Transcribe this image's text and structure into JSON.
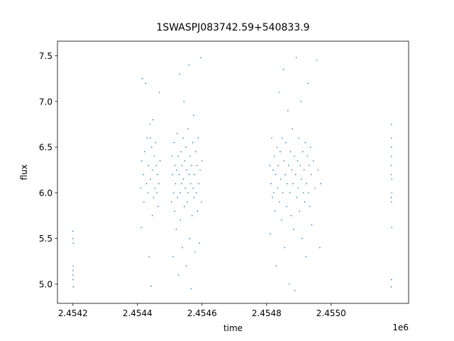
{
  "chart_data": {
    "type": "scatter",
    "title": "1SWASPJ083742.59+540833.9",
    "x_label": "time",
    "y_label": "flux",
    "x_offset_text": "1e6",
    "color": "#1f77b4",
    "xlim": [
      2454152,
      2455240
    ],
    "ylim": [
      4.79,
      7.66
    ],
    "xticks": [
      {
        "value": 2454200,
        "label": "2.4542"
      },
      {
        "value": 2454400,
        "label": "2.4544"
      },
      {
        "value": 2454600,
        "label": "2.4546"
      },
      {
        "value": 2454800,
        "label": "2.4548"
      },
      {
        "value": 2455000,
        "label": "2.4550"
      }
    ],
    "yticks": [
      {
        "value": 5,
        "label": "5.0"
      },
      5.5,
      {
        "value": 6,
        "label": "6.0"
      },
      6.5,
      {
        "value": 7,
        "label": "7.0"
      },
      7.5
    ],
    "x": [
      2454200,
      2454200,
      2454201,
      2454200,
      2454201,
      2454200,
      2454201,
      2454200,
      2454410,
      2454412,
      2454413,
      2454415,
      2454418,
      2454420,
      2454422,
      2454425,
      2454428,
      2454430,
      2454432,
      2454434,
      2454436,
      2454438,
      2454440,
      2454442,
      2454444,
      2454446,
      2454448,
      2454450,
      2454452,
      2454454,
      2454456,
      2454458,
      2454460,
      2454462,
      2454464,
      2454466,
      2454468,
      2454470,
      2454440,
      2454446,
      2454505,
      2454507,
      2454509,
      2454510,
      2454512,
      2454513,
      2454515,
      2454516,
      2454518,
      2454520,
      2454521,
      2454523,
      2454524,
      2454526,
      2454527,
      2454529,
      2454530,
      2454532,
      2454533,
      2454535,
      2454536,
      2454538,
      2454539,
      2454541,
      2454542,
      2454544,
      2454545,
      2454547,
      2454548,
      2454550,
      2454551,
      2454553,
      2454554,
      2454556,
      2454557,
      2454559,
      2454560,
      2454562,
      2454563,
      2454565,
      2454566,
      2454568,
      2454569,
      2454571,
      2454572,
      2454574,
      2454575,
      2454577,
      2454578,
      2454580,
      2454582,
      2454584,
      2454586,
      2454588,
      2454590,
      2454592,
      2454594,
      2454596,
      2454598,
      2454600,
      2454810,
      2454812,
      2454814,
      2454816,
      2454818,
      2454820,
      2454822,
      2454824,
      2454826,
      2454828,
      2454830,
      2454832,
      2454834,
      2454836,
      2454838,
      2454840,
      2454842,
      2454844,
      2454846,
      2454848,
      2454850,
      2454852,
      2454854,
      2454856,
      2454858,
      2454860,
      2454862,
      2454864,
      2454866,
      2454868,
      2454870,
      2454872,
      2454874,
      2454876,
      2454878,
      2454880,
      2454882,
      2454884,
      2454886,
      2454888,
      2454890,
      2454892,
      2454894,
      2454896,
      2454898,
      2454900,
      2454902,
      2454904,
      2454906,
      2454908,
      2454910,
      2454912,
      2454914,
      2454916,
      2454918,
      2454920,
      2454922,
      2454924,
      2454926,
      2454928,
      2454930,
      2454932,
      2454934,
      2454936,
      2454938,
      2454940,
      2454945,
      2454950,
      2454955,
      2454960,
      2454965,
      2454968,
      2455186,
      2455187,
      2455186,
      2455187,
      2455188,
      2455187,
      2455186,
      2455187,
      2455188,
      2455187,
      2455186,
      2455187,
      2455188
    ],
    "values": [
      5.15,
      5.58,
      5.45,
      5.1,
      4.97,
      5.5,
      5.2,
      5.05,
      6.05,
      5.62,
      6.35,
      7.25,
      6.2,
      5.9,
      6.45,
      7.2,
      6.1,
      6.6,
      6.0,
      6.3,
      5.3,
      6.75,
      6.15,
      4.98,
      6.5,
      6.25,
      6.8,
      5.95,
      6.4,
      6.05,
      6.55,
      6.3,
      6.0,
      6.2,
      5.85,
      6.1,
      7.1,
      6.35,
      6.6,
      5.75,
      5.9,
      6.4,
      6.2,
      5.3,
      6.0,
      6.55,
      5.8,
      6.3,
      6.1,
      5.6,
      6.25,
      6.65,
      5.95,
      6.4,
      5.1,
      6.2,
      7.3,
      6.0,
      5.7,
      6.45,
      6.1,
      6.3,
      5.4,
      6.6,
      6.15,
      7.0,
      5.85,
      6.35,
      6.05,
      6.5,
      5.2,
      6.25,
      5.9,
      6.7,
      6.0,
      7.4,
      6.2,
      5.5,
      6.4,
      6.1,
      4.95,
      6.3,
      5.75,
      6.55,
      6.05,
      6.85,
      5.95,
      6.2,
      5.35,
      6.45,
      6.0,
      6.3,
      5.8,
      6.6,
      6.1,
      5.45,
      6.25,
      7.48,
      5.9,
      6.35,
      6.3,
      5.55,
      6.1,
      6.6,
      5.95,
      6.25,
      6.0,
      6.4,
      5.8,
      6.2,
      5.2,
      6.5,
      6.05,
      6.3,
      7.1,
      5.9,
      6.45,
      6.15,
      5.7,
      6.6,
      6.0,
      7.35,
      6.35,
      5.4,
      6.2,
      6.55,
      5.85,
      6.1,
      6.9,
      6.3,
      5.0,
      6.0,
      6.45,
      5.75,
      6.25,
      6.7,
      6.1,
      5.6,
      6.4,
      4.93,
      6.2,
      7.48,
      5.95,
      6.35,
      6.05,
      6.6,
      5.8,
      6.3,
      7.0,
      6.15,
      5.5,
      6.45,
      6.0,
      6.25,
      5.9,
      6.55,
      5.3,
      6.1,
      6.4,
      7.2,
      6.0,
      6.3,
      5.85,
      6.5,
      6.2,
      5.65,
      6.35,
      6.05,
      7.45,
      6.25,
      5.4,
      6.1,
      6.2,
      6.6,
      5.95,
      6.4,
      6.0,
      6.75,
      6.3,
      5.9,
      5.62,
      5.05,
      4.97,
      6.5,
      6.15
    ]
  }
}
